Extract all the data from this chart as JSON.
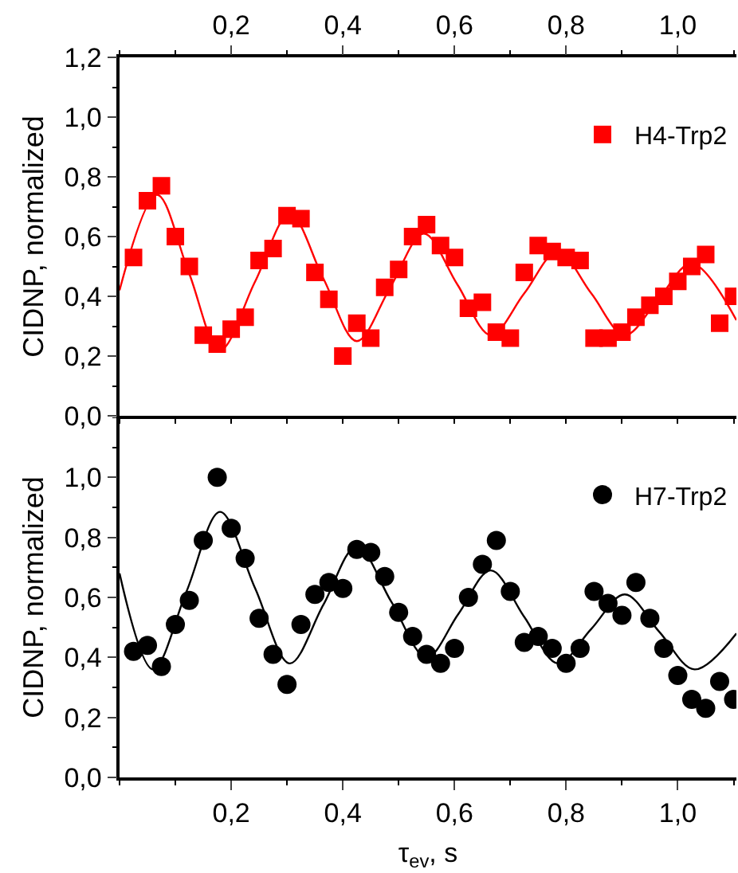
{
  "chart_data": [
    {
      "type": "scatter",
      "ylabel": "CIDNP, normalized",
      "tick_labels": "y",
      "xlim": [
        0,
        1.105
      ],
      "xticks": [
        {
          "value": 0.2,
          "label": null
        },
        {
          "value": 0.4,
          "label": null
        },
        {
          "value": 0.6,
          "label": null
        },
        {
          "value": 0.8,
          "label": null
        },
        {
          "value": 1.0,
          "label": null
        }
      ],
      "x2lim": [
        0,
        1.105
      ],
      "x2ticks": [
        {
          "value": 0.2,
          "label": "0,2"
        },
        {
          "value": 0.4,
          "label": "0,4"
        },
        {
          "value": 0.6,
          "label": "0,6"
        },
        {
          "value": 0.8,
          "label": "0,8"
        },
        {
          "value": 1.0,
          "label": "1,0"
        }
      ],
      "ylim": [
        0,
        1.2
      ],
      "yticks": [
        {
          "value": 0,
          "label": "0,0"
        },
        {
          "value": 0.2,
          "label": "0,2"
        },
        {
          "value": 0.4,
          "label": "0,4"
        },
        {
          "value": 0.6,
          "label": "0,6"
        },
        {
          "value": 0.8,
          "label": "0,8"
        },
        {
          "value": 1.0,
          "label": "1,0"
        },
        {
          "value": 1.2,
          "label": "1,2"
        }
      ],
      "legend": "top right",
      "grid": false,
      "series": [
        {
          "name": "H4-Trp2",
          "type": "scatter",
          "marker": "square",
          "color": "#ff0000",
          "x": [
            0.025,
            0.05,
            0.075,
            0.1,
            0.125,
            0.15,
            0.175,
            0.2,
            0.225,
            0.25,
            0.275,
            0.3,
            0.325,
            0.35,
            0.375,
            0.4,
            0.425,
            0.45,
            0.475,
            0.5,
            0.525,
            0.55,
            0.575,
            0.6,
            0.625,
            0.65,
            0.675,
            0.7,
            0.725,
            0.75,
            0.775,
            0.8,
            0.825,
            0.85,
            0.875,
            0.9,
            0.925,
            0.95,
            0.975,
            1.0,
            1.025,
            1.05,
            1.075,
            1.1
          ],
          "values": [
            0.53,
            0.72,
            0.77,
            0.6,
            0.5,
            0.27,
            0.24,
            0.29,
            0.33,
            0.52,
            0.56,
            0.67,
            0.66,
            0.48,
            0.39,
            0.2,
            0.31,
            0.26,
            0.43,
            0.49,
            0.6,
            0.64,
            0.57,
            0.53,
            0.36,
            0.38,
            0.28,
            0.26,
            0.48,
            0.57,
            0.55,
            0.53,
            0.52,
            0.26,
            0.26,
            0.28,
            0.33,
            0.37,
            0.4,
            0.45,
            0.5,
            0.54,
            0.31,
            0.4
          ]
        },
        {
          "type": "line",
          "marker": "none",
          "color": "#ff0000",
          "x": [
            0,
            0.067,
            0.124,
            0.18,
            0.243,
            0.305,
            0.365,
            0.425,
            0.485,
            0.545,
            0.605,
            0.665,
            0.725,
            0.785,
            0.845,
            0.905,
            0.965,
            1.025,
            1.105
          ],
          "values": [
            0.42,
            0.74,
            0.48,
            0.22,
            0.45,
            0.675,
            0.46,
            0.25,
            0.43,
            0.61,
            0.44,
            0.27,
            0.41,
            0.55,
            0.41,
            0.27,
            0.39,
            0.51,
            0.32
          ]
        }
      ]
    },
    {
      "type": "scatter",
      "xlabel": "τ$_{ev}$, s",
      "ylabel": "CIDNP, normalized",
      "xlim": [
        0,
        1.105
      ],
      "xticks": [
        {
          "value": 0.2,
          "label": "0,2"
        },
        {
          "value": 0.4,
          "label": "0,4"
        },
        {
          "value": 0.6,
          "label": "0,6"
        },
        {
          "value": 0.8,
          "label": "0,8"
        },
        {
          "value": 1.0,
          "label": "1,0"
        }
      ],
      "ylim": [
        0,
        1.2
      ],
      "yticks": [
        {
          "value": 0,
          "label": "0,0"
        },
        {
          "value": 0.2,
          "label": "0,2"
        },
        {
          "value": 0.4,
          "label": "0,4"
        },
        {
          "value": 0.6,
          "label": "0,6"
        },
        {
          "value": 0.8,
          "label": "0,8"
        },
        {
          "value": 1.0,
          "label": "1,0"
        }
      ],
      "legend": "top right",
      "grid": false,
      "series": [
        {
          "name": "H7-Trp2",
          "type": "scatter",
          "marker": "circle",
          "color": "#000000",
          "x": [
            0.025,
            0.05,
            0.075,
            0.1,
            0.125,
            0.15,
            0.175,
            0.2,
            0.225,
            0.25,
            0.275,
            0.3,
            0.325,
            0.35,
            0.375,
            0.4,
            0.425,
            0.45,
            0.475,
            0.5,
            0.525,
            0.55,
            0.575,
            0.6,
            0.625,
            0.65,
            0.675,
            0.7,
            0.725,
            0.75,
            0.775,
            0.8,
            0.825,
            0.85,
            0.875,
            0.9,
            0.925,
            0.95,
            0.975,
            1.0,
            1.025,
            1.05,
            1.075,
            1.1
          ],
          "values": [
            0.42,
            0.44,
            0.37,
            0.51,
            0.59,
            0.79,
            1.0,
            0.83,
            0.73,
            0.53,
            0.41,
            0.31,
            0.51,
            0.61,
            0.65,
            0.63,
            0.76,
            0.75,
            0.67,
            0.55,
            0.47,
            0.41,
            0.38,
            0.43,
            0.6,
            0.71,
            0.79,
            0.62,
            0.45,
            0.47,
            0.43,
            0.38,
            0.43,
            0.62,
            0.58,
            0.54,
            0.65,
            0.53,
            0.43,
            0.34,
            0.26,
            0.23,
            0.32,
            0.26
          ]
        },
        {
          "type": "line",
          "marker": "none",
          "color": "#000000",
          "x": [
            0,
            0.06,
            0.12,
            0.18,
            0.243,
            0.305,
            0.365,
            0.425,
            0.487,
            0.55,
            0.607,
            0.665,
            0.725,
            0.785,
            0.845,
            0.905,
            0.967,
            1.03,
            1.105
          ],
          "values": [
            0.68,
            0.36,
            0.62,
            0.885,
            0.63,
            0.38,
            0.575,
            0.77,
            0.585,
            0.4,
            0.545,
            0.69,
            0.535,
            0.38,
            0.495,
            0.61,
            0.485,
            0.36,
            0.48
          ]
        }
      ]
    }
  ]
}
